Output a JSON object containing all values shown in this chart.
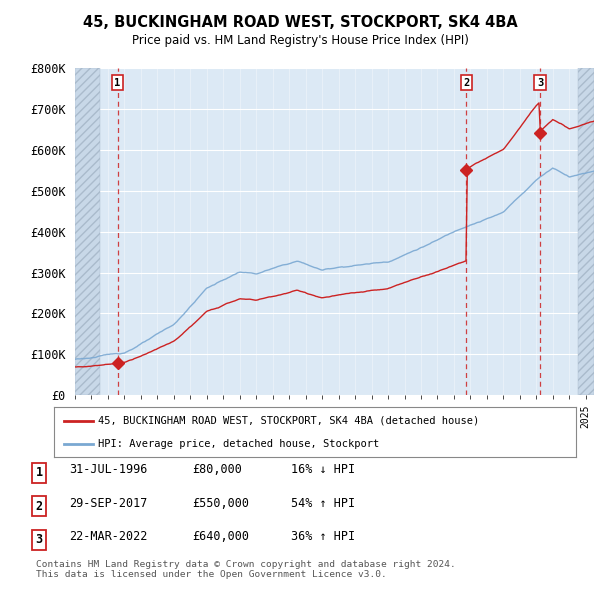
{
  "title_line1": "45, BUCKINGHAM ROAD WEST, STOCKPORT, SK4 4BA",
  "title_line2": "Price paid vs. HM Land Registry's House Price Index (HPI)",
  "ylim": [
    0,
    800000
  ],
  "yticks": [
    0,
    100000,
    200000,
    300000,
    400000,
    500000,
    600000,
    700000,
    800000
  ],
  "ytick_labels": [
    "£0",
    "£100K",
    "£200K",
    "£300K",
    "£400K",
    "£500K",
    "£600K",
    "£700K",
    "£800K"
  ],
  "xlim_start": 1994.0,
  "xlim_end": 2025.5,
  "hpi_color": "#7aa8d2",
  "price_color": "#cc2222",
  "marker_color": "#cc2222",
  "transaction_dates": [
    1996.58,
    2017.75,
    2022.22
  ],
  "transaction_prices": [
    80000,
    550000,
    640000
  ],
  "transaction_labels": [
    "1",
    "2",
    "3"
  ],
  "legend_label_price": "45, BUCKINGHAM ROAD WEST, STOCKPORT, SK4 4BA (detached house)",
  "legend_label_hpi": "HPI: Average price, detached house, Stockport",
  "table_rows": [
    [
      "1",
      "31-JUL-1996",
      "£80,000",
      "16% ↓ HPI"
    ],
    [
      "2",
      "29-SEP-2017",
      "£550,000",
      "54% ↑ HPI"
    ],
    [
      "3",
      "22-MAR-2022",
      "£640,000",
      "36% ↑ HPI"
    ]
  ],
  "footer_text": "Contains HM Land Registry data © Crown copyright and database right 2024.\nThis data is licensed under the Open Government Licence v3.0.",
  "bg_color": "#ffffff",
  "plot_bg_color": "#dce9f5",
  "hatch_bg_color": "#c8d8e8"
}
